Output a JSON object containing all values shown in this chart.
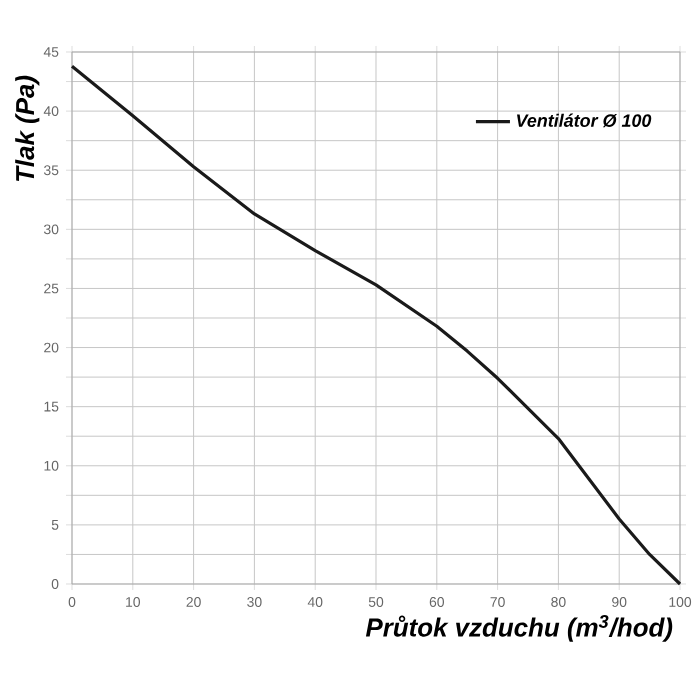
{
  "chart_data": {
    "type": "line",
    "xlabel": "**Průtok vzduchu (m$^{3}$/hod)**",
    "ylabel": "**Tlak (Pa)**",
    "x": [
      0,
      10,
      20,
      30,
      40,
      50,
      60,
      65,
      70,
      80,
      90,
      95,
      100
    ],
    "series": [
      {
        "name": "**Ventilátor Ø 100**",
        "color": "#1a1a1a",
        "values": [
          43.8,
          39.6,
          35.3,
          31.3,
          28.2,
          25.3,
          21.8,
          19.7,
          17.4,
          12.3,
          5.5,
          2.5,
          0
        ]
      }
    ],
    "xlim": [
      0,
      100
    ],
    "xticks": [
      0,
      10,
      20,
      30,
      40,
      50,
      60,
      70,
      80,
      90,
      100
    ],
    "ylim": [
      0,
      45
    ],
    "yticks": [
      0,
      {
        "value": 2.5,
        "label": null
      },
      5,
      {
        "value": 7.5,
        "label": null
      },
      10,
      {
        "value": 12.5,
        "label": null
      },
      15,
      {
        "value": 17.5,
        "label": null
      },
      20,
      {
        "value": 22.5,
        "label": null
      },
      25,
      {
        "value": 27.5,
        "label": null
      },
      30,
      {
        "value": 32.5,
        "label": null
      },
      35,
      {
        "value": 37.5,
        "label": null
      },
      40,
      {
        "value": 42.5,
        "label": null
      },
      45
    ],
    "grid": true,
    "legend": "top right",
    "marker": "none",
    "line_style": "solid"
  }
}
